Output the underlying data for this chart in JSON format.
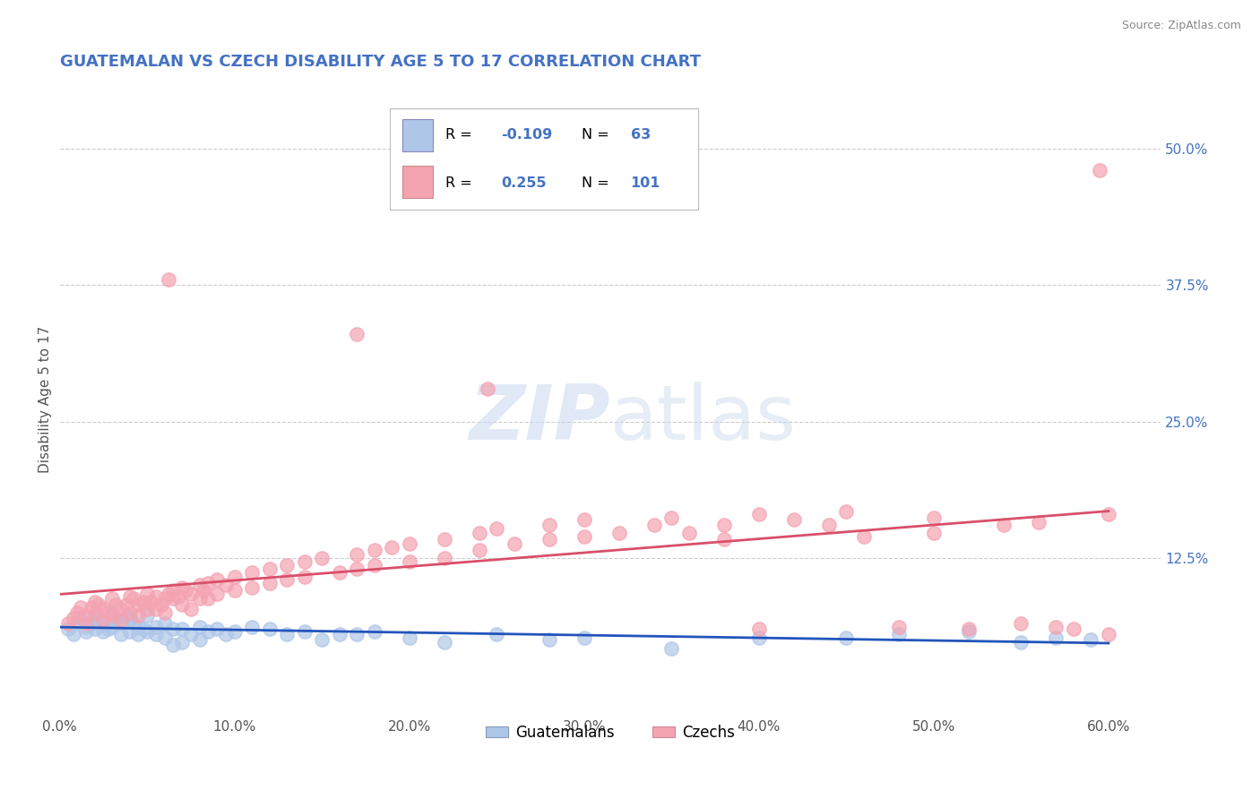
{
  "title": "GUATEMALAN VS CZECH DISABILITY AGE 5 TO 17 CORRELATION CHART",
  "source": "Source: ZipAtlas.com",
  "ylabel": "Disability Age 5 to 17",
  "xlim": [
    0.0,
    0.63
  ],
  "ylim": [
    -0.02,
    0.56
  ],
  "xtick_labels": [
    "0.0%",
    "10.0%",
    "20.0%",
    "30.0%",
    "40.0%",
    "50.0%",
    "60.0%"
  ],
  "xtick_values": [
    0.0,
    0.1,
    0.2,
    0.3,
    0.4,
    0.5,
    0.6
  ],
  "ytick_labels": [
    "12.5%",
    "25.0%",
    "37.5%",
    "50.0%"
  ],
  "ytick_values": [
    0.125,
    0.25,
    0.375,
    0.5
  ],
  "legend_labels": [
    "Guatemalans",
    "Czechs"
  ],
  "guatemalan_color": "#aec6e8",
  "czech_color": "#f4a3b1",
  "guatemalan_line_color": "#2255bb",
  "czech_line_color": "#d94f6a",
  "title_color": "#4472c4",
  "source_color": "#888888",
  "watermark": "ZIPatlas",
  "background_color": "#ffffff",
  "grid_color": "#cccccc",
  "guatemalan_scatter": [
    [
      0.005,
      0.06
    ],
    [
      0.008,
      0.055
    ],
    [
      0.01,
      0.065
    ],
    [
      0.012,
      0.07
    ],
    [
      0.015,
      0.062
    ],
    [
      0.015,
      0.058
    ],
    [
      0.018,
      0.065
    ],
    [
      0.02,
      0.072
    ],
    [
      0.02,
      0.06
    ],
    [
      0.022,
      0.068
    ],
    [
      0.025,
      0.065
    ],
    [
      0.025,
      0.058
    ],
    [
      0.028,
      0.06
    ],
    [
      0.03,
      0.075
    ],
    [
      0.03,
      0.062
    ],
    [
      0.032,
      0.068
    ],
    [
      0.035,
      0.065
    ],
    [
      0.035,
      0.055
    ],
    [
      0.038,
      0.072
    ],
    [
      0.04,
      0.07
    ],
    [
      0.04,
      0.058
    ],
    [
      0.042,
      0.065
    ],
    [
      0.045,
      0.062
    ],
    [
      0.045,
      0.055
    ],
    [
      0.048,
      0.06
    ],
    [
      0.05,
      0.072
    ],
    [
      0.05,
      0.058
    ],
    [
      0.055,
      0.062
    ],
    [
      0.055,
      0.055
    ],
    [
      0.06,
      0.065
    ],
    [
      0.06,
      0.052
    ],
    [
      0.065,
      0.06
    ],
    [
      0.065,
      0.045
    ],
    [
      0.07,
      0.06
    ],
    [
      0.07,
      0.048
    ],
    [
      0.075,
      0.055
    ],
    [
      0.08,
      0.062
    ],
    [
      0.08,
      0.05
    ],
    [
      0.085,
      0.058
    ],
    [
      0.09,
      0.06
    ],
    [
      0.095,
      0.055
    ],
    [
      0.1,
      0.058
    ],
    [
      0.11,
      0.062
    ],
    [
      0.12,
      0.06
    ],
    [
      0.13,
      0.055
    ],
    [
      0.14,
      0.058
    ],
    [
      0.15,
      0.05
    ],
    [
      0.16,
      0.055
    ],
    [
      0.17,
      0.055
    ],
    [
      0.18,
      0.058
    ],
    [
      0.2,
      0.052
    ],
    [
      0.22,
      0.048
    ],
    [
      0.25,
      0.055
    ],
    [
      0.28,
      0.05
    ],
    [
      0.3,
      0.052
    ],
    [
      0.35,
      0.042
    ],
    [
      0.4,
      0.052
    ],
    [
      0.45,
      0.052
    ],
    [
      0.48,
      0.055
    ],
    [
      0.52,
      0.058
    ],
    [
      0.55,
      0.048
    ],
    [
      0.57,
      0.052
    ],
    [
      0.59,
      0.05
    ]
  ],
  "czech_scatter": [
    [
      0.005,
      0.065
    ],
    [
      0.008,
      0.07
    ],
    [
      0.01,
      0.075
    ],
    [
      0.012,
      0.08
    ],
    [
      0.015,
      0.072
    ],
    [
      0.015,
      0.065
    ],
    [
      0.018,
      0.08
    ],
    [
      0.02,
      0.085
    ],
    [
      0.02,
      0.075
    ],
    [
      0.022,
      0.082
    ],
    [
      0.025,
      0.078
    ],
    [
      0.025,
      0.068
    ],
    [
      0.028,
      0.075
    ],
    [
      0.03,
      0.088
    ],
    [
      0.03,
      0.072
    ],
    [
      0.032,
      0.082
    ],
    [
      0.035,
      0.078
    ],
    [
      0.035,
      0.068
    ],
    [
      0.038,
      0.082
    ],
    [
      0.04,
      0.09
    ],
    [
      0.04,
      0.075
    ],
    [
      0.042,
      0.088
    ],
    [
      0.045,
      0.082
    ],
    [
      0.045,
      0.072
    ],
    [
      0.048,
      0.085
    ],
    [
      0.05,
      0.092
    ],
    [
      0.05,
      0.078
    ],
    [
      0.052,
      0.085
    ],
    [
      0.055,
      0.09
    ],
    [
      0.055,
      0.078
    ],
    [
      0.058,
      0.082
    ],
    [
      0.06,
      0.088
    ],
    [
      0.06,
      0.075
    ],
    [
      0.062,
      0.092
    ],
    [
      0.065,
      0.088
    ],
    [
      0.065,
      0.095
    ],
    [
      0.068,
      0.09
    ],
    [
      0.07,
      0.098
    ],
    [
      0.07,
      0.082
    ],
    [
      0.072,
      0.095
    ],
    [
      0.075,
      0.092
    ],
    [
      0.075,
      0.078
    ],
    [
      0.08,
      0.1
    ],
    [
      0.08,
      0.088
    ],
    [
      0.082,
      0.095
    ],
    [
      0.085,
      0.102
    ],
    [
      0.085,
      0.088
    ],
    [
      0.09,
      0.105
    ],
    [
      0.09,
      0.092
    ],
    [
      0.095,
      0.1
    ],
    [
      0.1,
      0.108
    ],
    [
      0.1,
      0.095
    ],
    [
      0.11,
      0.112
    ],
    [
      0.11,
      0.098
    ],
    [
      0.12,
      0.115
    ],
    [
      0.12,
      0.102
    ],
    [
      0.13,
      0.118
    ],
    [
      0.13,
      0.105
    ],
    [
      0.14,
      0.122
    ],
    [
      0.14,
      0.108
    ],
    [
      0.15,
      0.125
    ],
    [
      0.16,
      0.112
    ],
    [
      0.17,
      0.128
    ],
    [
      0.17,
      0.115
    ],
    [
      0.18,
      0.132
    ],
    [
      0.18,
      0.118
    ],
    [
      0.19,
      0.135
    ],
    [
      0.2,
      0.122
    ],
    [
      0.2,
      0.138
    ],
    [
      0.22,
      0.142
    ],
    [
      0.22,
      0.125
    ],
    [
      0.24,
      0.148
    ],
    [
      0.24,
      0.132
    ],
    [
      0.25,
      0.152
    ],
    [
      0.26,
      0.138
    ],
    [
      0.28,
      0.155
    ],
    [
      0.28,
      0.142
    ],
    [
      0.3,
      0.16
    ],
    [
      0.3,
      0.145
    ],
    [
      0.32,
      0.148
    ],
    [
      0.34,
      0.155
    ],
    [
      0.35,
      0.162
    ],
    [
      0.36,
      0.148
    ],
    [
      0.38,
      0.155
    ],
    [
      0.38,
      0.142
    ],
    [
      0.4,
      0.165
    ],
    [
      0.4,
      0.06
    ],
    [
      0.42,
      0.16
    ],
    [
      0.44,
      0.155
    ],
    [
      0.45,
      0.168
    ],
    [
      0.46,
      0.145
    ],
    [
      0.48,
      0.062
    ],
    [
      0.5,
      0.162
    ],
    [
      0.5,
      0.148
    ],
    [
      0.52,
      0.06
    ],
    [
      0.54,
      0.155
    ],
    [
      0.55,
      0.065
    ],
    [
      0.56,
      0.158
    ],
    [
      0.57,
      0.062
    ],
    [
      0.58,
      0.06
    ],
    [
      0.595,
      0.48
    ],
    [
      0.6,
      0.055
    ],
    [
      0.6,
      0.165
    ],
    [
      0.062,
      0.38
    ],
    [
      0.17,
      0.33
    ],
    [
      0.245,
      0.28
    ]
  ]
}
